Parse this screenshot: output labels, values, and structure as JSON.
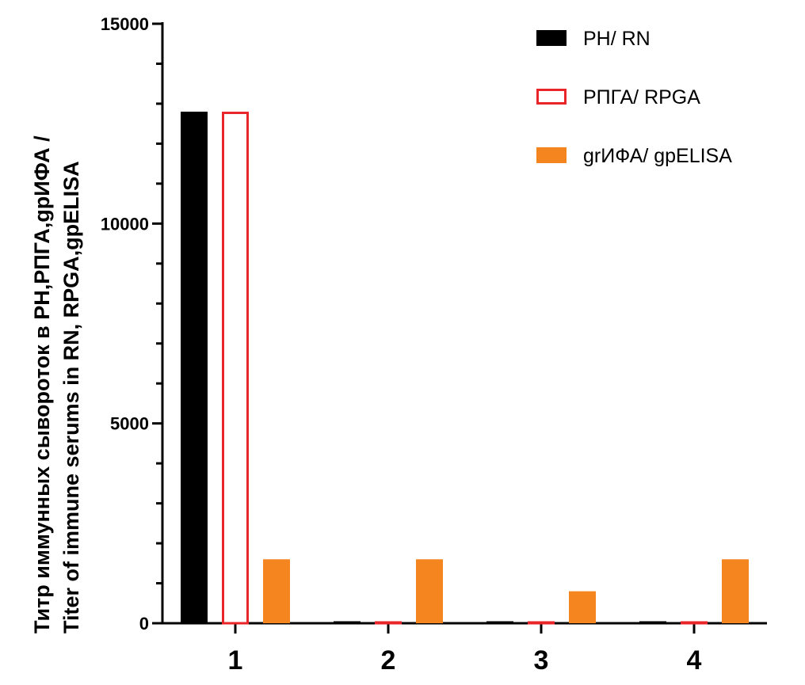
{
  "chart_data": {
    "type": "bar",
    "categories": [
      "1",
      "2",
      "3",
      "4"
    ],
    "series": [
      {
        "name": "РН/ RN",
        "values": [
          12800,
          50,
          50,
          50
        ],
        "fill": "#000000",
        "stroke": "#000000",
        "style": "filled"
      },
      {
        "name": "РПГА/ RPGA",
        "values": [
          12800,
          50,
          50,
          50
        ],
        "fill": "#ffffff",
        "stroke": "#e8262a",
        "style": "outline"
      },
      {
        "name": "grИФА/ gpELISA",
        "values": [
          1600,
          1600,
          800,
          1600
        ],
        "fill": "#f5861f",
        "stroke": "#f5861f",
        "style": "filled"
      }
    ],
    "ylim": [
      0,
      15000
    ],
    "y_ticks": [
      0,
      5000,
      10000,
      15000
    ],
    "y_tick_labels": [
      "0",
      "5000",
      "10000",
      "15000"
    ],
    "ylabel_line1": "Титр иммунных сывороток в РН,РПГА,gpИФА /",
    "ylabel_line2": "Titer of immune serums in RN, RPGA,gpELISA",
    "xlabel": "",
    "legend_position": "top-right",
    "grid": false
  }
}
